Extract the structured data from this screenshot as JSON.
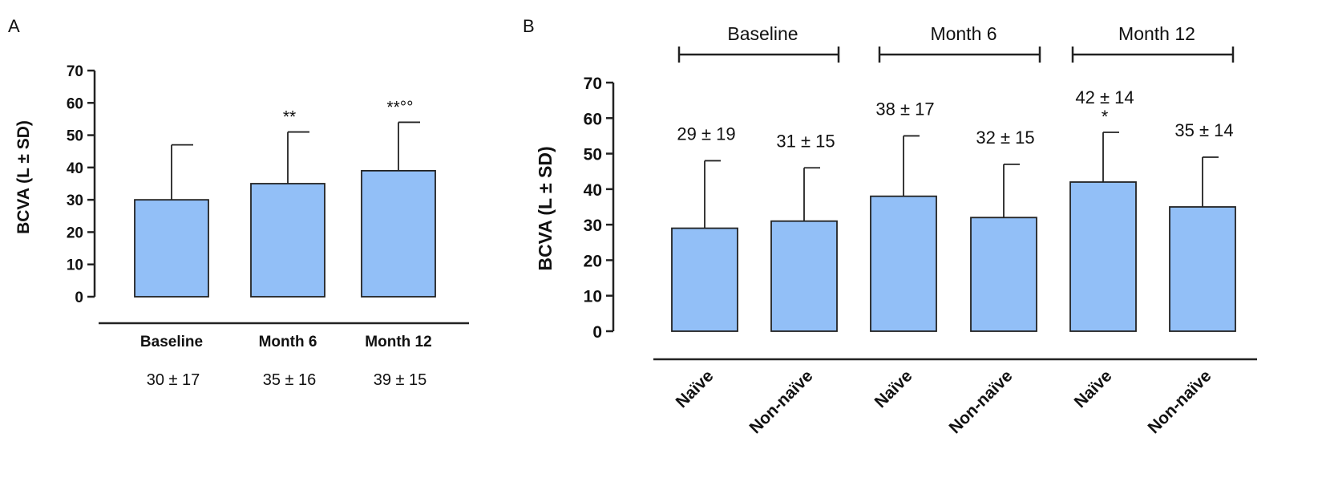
{
  "colors": {
    "bar_fill": "#92BFF7",
    "stroke": "#222222",
    "text": "#111111"
  },
  "chart_data": [
    {
      "type": "bar",
      "panel_label": "A",
      "ylabel": "BCVA (L ± SD)",
      "ylim": [
        0,
        70
      ],
      "yticks": [
        "0",
        "10",
        "20",
        "30",
        "40",
        "50",
        "60",
        "70"
      ],
      "categories": [
        "Baseline",
        "Month 6",
        "Month 12"
      ],
      "values": [
        30,
        35,
        39
      ],
      "errors": [
        17,
        16,
        15
      ],
      "significance": [
        "",
        "**",
        "**°°"
      ],
      "value_labels": [
        "30 ± 17",
        "35 ± 16",
        "39 ± 15"
      ]
    },
    {
      "type": "bar",
      "panel_label": "B",
      "ylabel": "BCVA (L ± SD)",
      "ylim": [
        0,
        70
      ],
      "yticks": [
        "0",
        "10",
        "20",
        "30",
        "40",
        "50",
        "60",
        "70"
      ],
      "groups": [
        "Baseline",
        "Month 6",
        "Month 12"
      ],
      "categories": [
        "Naïve",
        "Non-naïve",
        "Naïve",
        "Non-naïve",
        "Naïve",
        "Non-naïve"
      ],
      "values": [
        29,
        31,
        38,
        32,
        42,
        35
      ],
      "errors": [
        19,
        15,
        17,
        15,
        14,
        14
      ],
      "significance": [
        "",
        "",
        "",
        "",
        "*",
        ""
      ],
      "value_labels": [
        "29 ± 19",
        "31 ± 15",
        "38 ± 17",
        "32 ± 15",
        "42 ± 14",
        "35 ± 14"
      ]
    }
  ]
}
